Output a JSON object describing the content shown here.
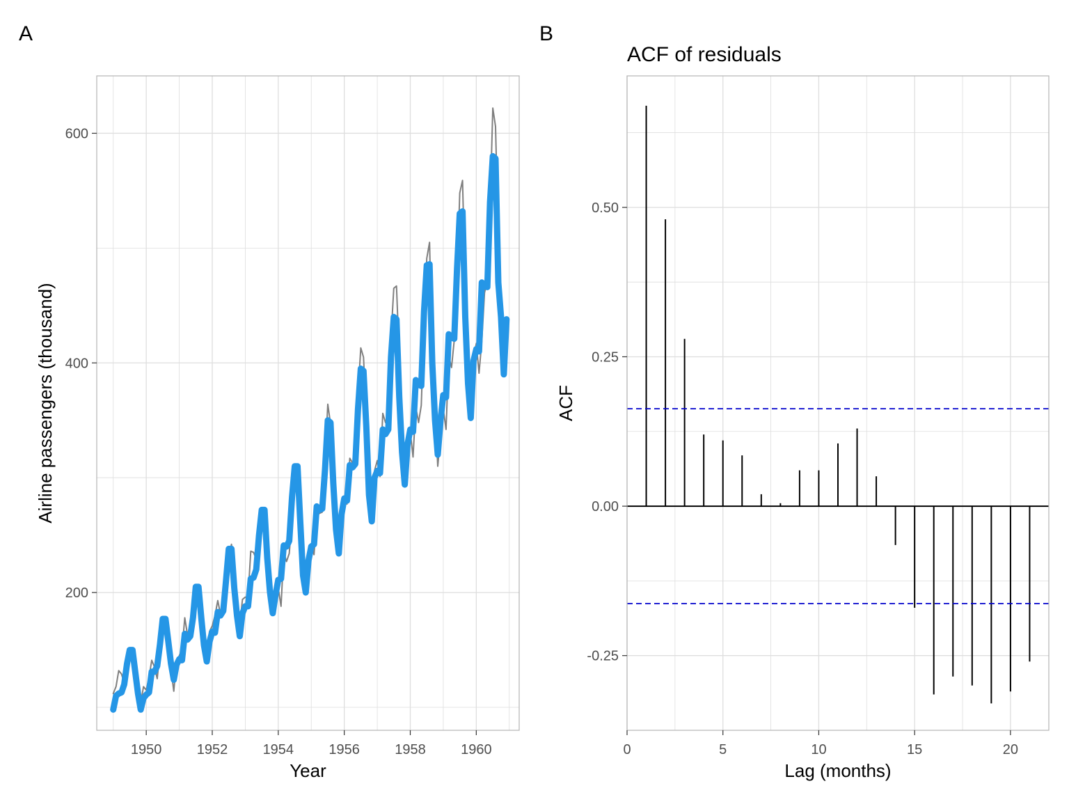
{
  "panels": {
    "a": {
      "label": "A"
    },
    "b": {
      "label": "B"
    }
  },
  "colors": {
    "observed": "#7f7f7f",
    "fitted": "#2596e6",
    "acf_bars": "#000000",
    "confidence_bounds": "#0000cc",
    "grid": "#dedede",
    "panel_border": "#b3b3b3"
  },
  "chart_data": [
    {
      "type": "line",
      "title": "",
      "xlabel": "Year",
      "ylabel": "Airline passengers (thousand)",
      "xlim": [
        1948.5,
        1961.3
      ],
      "ylim": [
        80,
        650
      ],
      "x_ticks": [
        1950,
        1952,
        1954,
        1956,
        1958,
        1960
      ],
      "y_ticks": [
        200,
        400,
        600
      ],
      "grid": true,
      "x_start": 1949,
      "x_step": 0.0833333,
      "series": [
        {
          "name": "",
          "role": "observed",
          "values": [
            112,
            118,
            132,
            129,
            121,
            135,
            148,
            148,
            136,
            119,
            104,
            118,
            115,
            126,
            141,
            135,
            125,
            149,
            170,
            170,
            158,
            133,
            114,
            140,
            145,
            150,
            178,
            163,
            172,
            178,
            199,
            199,
            184,
            162,
            146,
            166,
            171,
            180,
            193,
            181,
            183,
            218,
            230,
            242,
            209,
            191,
            172,
            194,
            196,
            196,
            236,
            235,
            229,
            243,
            264,
            272,
            237,
            211,
            180,
            201,
            204,
            188,
            235,
            227,
            234,
            264,
            302,
            293,
            259,
            229,
            203,
            229,
            242,
            233,
            267,
            269,
            270,
            315,
            364,
            347,
            312,
            274,
            237,
            278,
            284,
            277,
            317,
            313,
            318,
            374,
            413,
            405,
            355,
            306,
            271,
            306,
            315,
            301,
            356,
            348,
            355,
            422,
            465,
            467,
            404,
            347,
            305,
            336,
            340,
            318,
            362,
            348,
            363,
            435,
            491,
            505,
            404,
            359,
            310,
            337,
            360,
            342,
            406,
            396,
            420,
            472,
            548,
            559,
            463,
            407,
            362,
            405,
            417,
            391,
            419,
            461,
            472,
            535,
            622,
            606,
            508,
            461,
            390,
            432
          ]
        },
        {
          "name": "",
          "role": "fitted",
          "values": [
            98,
            110,
            112,
            113,
            120,
            138,
            150,
            150,
            131,
            112,
            98,
            108,
            111,
            113,
            131,
            131,
            136,
            155,
            177,
            177,
            158,
            138,
            124,
            137,
            142,
            141,
            164,
            159,
            162,
            178,
            205,
            205,
            178,
            154,
            140,
            157,
            166,
            165,
            183,
            180,
            184,
            210,
            238,
            238,
            204,
            180,
            162,
            182,
            188,
            188,
            212,
            213,
            220,
            250,
            272,
            272,
            230,
            200,
            182,
            198,
            211,
            212,
            241,
            240,
            245,
            283,
            310,
            310,
            262,
            215,
            200,
            228,
            240,
            242,
            275,
            272,
            273,
            307,
            350,
            348,
            295,
            255,
            234,
            268,
            282,
            280,
            311,
            309,
            312,
            360,
            395,
            393,
            345,
            285,
            262,
            300,
            306,
            304,
            342,
            338,
            342,
            405,
            440,
            438,
            370,
            322,
            294,
            329,
            342,
            340,
            385,
            381,
            380,
            445,
            485,
            486,
            400,
            350,
            320,
            350,
            372,
            370,
            425,
            422,
            421,
            482,
            530,
            532,
            440,
            382,
            352,
            402,
            412,
            410,
            470,
            467,
            466,
            540,
            580,
            578,
            470,
            440,
            390,
            438
          ]
        }
      ]
    },
    {
      "type": "bar",
      "title": "ACF of residuals",
      "xlabel": "Lag (months)",
      "ylabel": "ACF",
      "xlim": [
        0,
        22
      ],
      "ylim": [
        -0.375,
        0.72
      ],
      "x_ticks": [
        0,
        5,
        10,
        15,
        20
      ],
      "y_ticks": [
        "-0.25",
        "0.00",
        "0.25",
        "0.50"
      ],
      "y_tick_values": [
        -0.25,
        0.0,
        0.25,
        0.5
      ],
      "grid": true,
      "x": [
        1,
        2,
        3,
        4,
        5,
        6,
        7,
        8,
        9,
        10,
        11,
        12,
        13,
        14,
        15,
        16,
        17,
        18,
        19,
        20,
        21
      ],
      "values": [
        0.67,
        0.48,
        0.28,
        0.12,
        0.11,
        0.085,
        0.02,
        0.005,
        0.06,
        0.06,
        0.105,
        0.13,
        0.05,
        -0.065,
        -0.17,
        -0.315,
        -0.285,
        -0.3,
        -0.33,
        -0.31,
        -0.26
      ],
      "confidence_bounds": [
        -0.163,
        0.163
      ]
    }
  ]
}
